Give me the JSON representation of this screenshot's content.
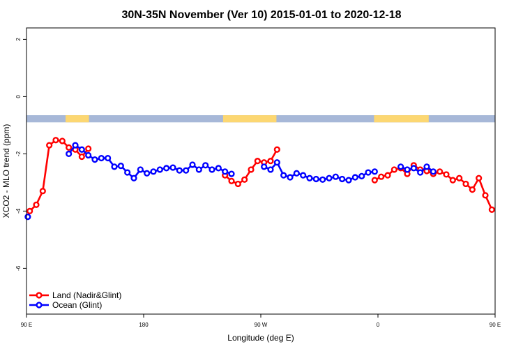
{
  "chart_data": {
    "type": "line",
    "title": "30N-35N November (Ver 10)   2015-01-01 to 2020-12-18",
    "xlabel": "Longitude (deg E)",
    "ylabel": "XCO2 - MLO trend (ppm)",
    "xlim": [
      90,
      450
    ],
    "ylim": [
      -7.6,
      2.4
    ],
    "x_ticks": [
      {
        "value": 90,
        "label": "90 E"
      },
      {
        "value": 180,
        "label": "180"
      },
      {
        "value": 270,
        "label": "90 W"
      },
      {
        "value": 360,
        "label": "0"
      },
      {
        "value": 450,
        "label": "90 E"
      },
      {
        "value": 540,
        "label": "180"
      }
    ],
    "y_ticks": [
      {
        "value": 2,
        "label": "2"
      },
      {
        "value": 0,
        "label": "0"
      },
      {
        "value": -2,
        "label": "-2"
      },
      {
        "value": -4,
        "label": "-4"
      },
      {
        "value": -6,
        "label": "-6"
      }
    ],
    "legend_position": "bottom-left",
    "land_sea_band": {
      "y_range": [
        -0.9,
        -0.65
      ],
      "ocean_color": "#A7B8D8",
      "land_color": "#FCD772",
      "land_segments": [
        [
          120,
          138
        ],
        [
          241,
          282
        ],
        [
          357,
          399
        ],
        [
          514,
          525
        ]
      ]
    },
    "series": [
      {
        "name": "Land (Nadir&Glint)",
        "color": "#FF0000",
        "points": [
          [
            92.5,
            -4.0
          ],
          [
            97.5,
            -3.78
          ],
          [
            102.5,
            -3.3
          ],
          [
            107.5,
            -1.7
          ],
          [
            112.5,
            -1.52
          ],
          [
            117.5,
            -1.55
          ],
          [
            122.5,
            -1.78
          ],
          [
            127.5,
            -1.85
          ],
          [
            132.5,
            -2.1
          ],
          [
            137.5,
            -1.82
          ],
          null,
          [
            242.5,
            -2.75
          ],
          [
            247.5,
            -2.95
          ],
          [
            252.5,
            -3.05
          ],
          [
            257.5,
            -2.9
          ],
          [
            262.5,
            -2.55
          ],
          [
            267.5,
            -2.25
          ],
          [
            272.5,
            -2.3
          ],
          [
            277.5,
            -2.25
          ],
          [
            282.5,
            -1.85
          ],
          null,
          [
            357.5,
            -2.92
          ],
          [
            362.5,
            -2.8
          ],
          [
            367.5,
            -2.75
          ],
          [
            372.5,
            -2.55
          ],
          [
            377.5,
            -2.5
          ],
          [
            382.5,
            -2.7
          ],
          [
            387.5,
            -2.4
          ],
          [
            392.5,
            -2.55
          ],
          [
            397.5,
            -2.6
          ],
          [
            402.5,
            -2.7
          ],
          [
            407.5,
            -2.62
          ],
          [
            412.5,
            -2.72
          ],
          [
            417.5,
            -2.92
          ],
          [
            422.5,
            -2.85
          ],
          [
            427.5,
            -3.05
          ],
          [
            432.5,
            -3.25
          ],
          [
            437.5,
            -2.85
          ],
          [
            442.5,
            -3.45
          ],
          [
            447.5,
            -3.95
          ],
          [
            452.5,
            -4.05
          ],
          [
            457.5,
            -3.75
          ],
          [
            462.5,
            -3.3
          ],
          [
            467.5,
            -1.7
          ],
          [
            472.5,
            -1.52
          ],
          [
            477.5,
            -1.55
          ],
          [
            482.5,
            -1.78
          ],
          [
            487.5,
            -1.85
          ],
          [
            492.5,
            -2.1
          ],
          [
            497.5,
            -1.82
          ]
        ]
      },
      {
        "name": "Ocean (Glint)",
        "color": "#0000FF",
        "points": [
          [
            91,
            -4.2
          ],
          null,
          [
            122.5,
            -2.0
          ],
          [
            127.5,
            -1.7
          ],
          [
            132.5,
            -1.85
          ],
          [
            137.5,
            -2.05
          ],
          [
            142.5,
            -2.2
          ],
          [
            147.5,
            -2.15
          ],
          [
            152.5,
            -2.15
          ],
          [
            157.5,
            -2.45
          ],
          [
            162.5,
            -2.42
          ],
          [
            167.5,
            -2.65
          ],
          [
            172.5,
            -2.85
          ],
          [
            177.5,
            -2.55
          ],
          [
            182.5,
            -2.68
          ],
          [
            187.5,
            -2.62
          ],
          [
            192.5,
            -2.55
          ],
          [
            197.5,
            -2.5
          ],
          [
            202.5,
            -2.48
          ],
          [
            207.5,
            -2.58
          ],
          [
            212.5,
            -2.58
          ],
          [
            217.5,
            -2.38
          ],
          [
            222.5,
            -2.55
          ],
          [
            227.5,
            -2.4
          ],
          [
            232.5,
            -2.55
          ],
          [
            237.5,
            -2.5
          ],
          [
            242.5,
            -2.62
          ],
          [
            247.5,
            -2.7
          ],
          null,
          [
            272.5,
            -2.45
          ],
          [
            277.5,
            -2.55
          ],
          [
            282.5,
            -2.3
          ],
          [
            287.5,
            -2.75
          ],
          [
            292.5,
            -2.82
          ],
          [
            297.5,
            -2.68
          ],
          [
            302.5,
            -2.75
          ],
          [
            307.5,
            -2.85
          ],
          [
            312.5,
            -2.88
          ],
          [
            317.5,
            -2.9
          ],
          [
            322.5,
            -2.85
          ],
          [
            327.5,
            -2.8
          ],
          [
            332.5,
            -2.88
          ],
          [
            337.5,
            -2.92
          ],
          [
            342.5,
            -2.82
          ],
          [
            347.5,
            -2.78
          ],
          [
            352.5,
            -2.65
          ],
          [
            357.5,
            -2.62
          ],
          null,
          [
            377.5,
            -2.45
          ],
          [
            382.5,
            -2.55
          ],
          [
            387.5,
            -2.5
          ],
          [
            392.5,
            -2.65
          ],
          [
            397.5,
            -2.45
          ],
          [
            402.5,
            -2.62
          ],
          null,
          [
            452.5,
            -4.15
          ],
          [
            457.5,
            -4.05
          ],
          [
            462.5,
            -4.22
          ],
          null,
          [
            482.5,
            -2.0
          ],
          [
            487.5,
            -1.7
          ],
          [
            492.5,
            -1.85
          ],
          [
            497.5,
            -1.9
          ],
          [
            502.5,
            -2.05
          ],
          [
            507.5,
            -2.2
          ],
          [
            512.5,
            -2.15
          ],
          [
            517.5,
            -2.15
          ],
          [
            522.5,
            -2.45
          ],
          [
            527.5,
            -2.42
          ],
          [
            532.5,
            -2.65
          ],
          [
            537.5,
            -2.85
          ],
          [
            540,
            -2.55
          ]
        ]
      }
    ]
  }
}
